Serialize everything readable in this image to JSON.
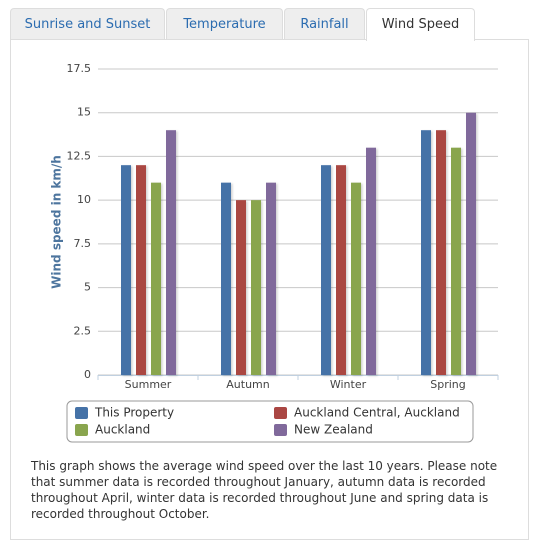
{
  "tabs": [
    {
      "label": "Sunrise and Sunset",
      "active": false
    },
    {
      "label": "Temperature",
      "active": false
    },
    {
      "label": "Rainfall",
      "active": false
    },
    {
      "label": "Wind Speed",
      "active": true
    }
  ],
  "chart_data": {
    "type": "bar",
    "y_axis_title": "Wind speed in km/h",
    "categories": [
      "Summer",
      "Autumn",
      "Winter",
      "Spring"
    ],
    "series": [
      {
        "name": "This Property",
        "color": "#4572a7",
        "values": [
          12,
          11,
          12,
          14
        ]
      },
      {
        "name": "Auckland Central, Auckland",
        "color": "#aa4643",
        "values": [
          12,
          10,
          12,
          14
        ]
      },
      {
        "name": "Auckland",
        "color": "#89a54e",
        "values": [
          11,
          10,
          11,
          13
        ]
      },
      {
        "name": "New Zealand",
        "color": "#80699b",
        "values": [
          14,
          11,
          13,
          15
        ]
      }
    ],
    "ylim": [
      0,
      17.5
    ],
    "yticks": [
      0,
      2.5,
      5,
      7.5,
      10,
      12.5,
      15,
      17.5
    ],
    "grid": true,
    "legend": "bottom"
  },
  "description": "This graph shows the average wind speed over the last 10 years. Please note that summer data is recorded throughout January, autumn data is recorded throughout April, winter data is recorded throughout June and spring data is recorded throughout October."
}
